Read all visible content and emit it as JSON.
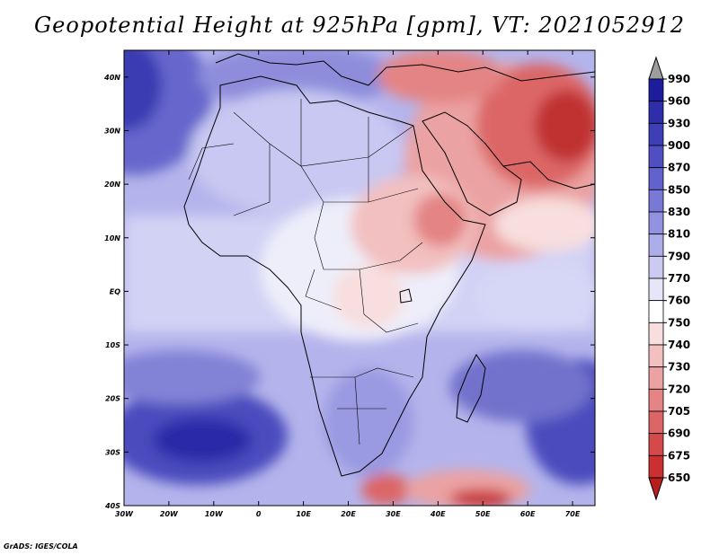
{
  "title": "Geopotential Height at 925hPa [gpm], VT: 2021052912",
  "footer": "GrADS: IGES/COLA",
  "map": {
    "projection": "latlon",
    "lon_range": [
      -30,
      75
    ],
    "lat_range": [
      -40,
      45
    ],
    "x_ticks": [
      {
        "lon": -30,
        "label": "30W"
      },
      {
        "lon": -20,
        "label": "20W"
      },
      {
        "lon": -10,
        "label": "10W"
      },
      {
        "lon": 0,
        "label": "0"
      },
      {
        "lon": 10,
        "label": "10E"
      },
      {
        "lon": 20,
        "label": "20E"
      },
      {
        "lon": 30,
        "label": "30E"
      },
      {
        "lon": 40,
        "label": "40E"
      },
      {
        "lon": 50,
        "label": "50E"
      },
      {
        "lon": 60,
        "label": "60E"
      },
      {
        "lon": 70,
        "label": "70E"
      }
    ],
    "y_ticks": [
      {
        "lat": 40,
        "label": "40N"
      },
      {
        "lat": 30,
        "label": "30N"
      },
      {
        "lat": 20,
        "label": "20N"
      },
      {
        "lat": 10,
        "label": "10N"
      },
      {
        "lat": 0,
        "label": "EQ"
      },
      {
        "lat": -10,
        "label": "10S"
      },
      {
        "lat": -20,
        "label": "20S"
      },
      {
        "lat": -30,
        "label": "30S"
      },
      {
        "lat": -40,
        "label": "40S"
      }
    ]
  },
  "colorbar": {
    "levels": [
      {
        "label": "990",
        "color": "#9e9e9e"
      },
      {
        "label": "960",
        "color": "#1c1c9c"
      },
      {
        "label": "930",
        "color": "#2e2eaa"
      },
      {
        "label": "900",
        "color": "#3e3eb6"
      },
      {
        "label": "870",
        "color": "#4f4fc2"
      },
      {
        "label": "850",
        "color": "#6262cc"
      },
      {
        "label": "830",
        "color": "#7878d6"
      },
      {
        "label": "810",
        "color": "#9292e0"
      },
      {
        "label": "790",
        "color": "#adadea"
      },
      {
        "label": "770",
        "color": "#cacaf2"
      },
      {
        "label": "760",
        "color": "#e6e6f8"
      },
      {
        "label": "750",
        "color": "#ffffff"
      },
      {
        "label": "740",
        "color": "#f8dede"
      },
      {
        "label": "730",
        "color": "#f2c0c0"
      },
      {
        "label": "720",
        "color": "#eba2a2"
      },
      {
        "label": "705",
        "color": "#e48484"
      },
      {
        "label": "690",
        "color": "#dc6666"
      },
      {
        "label": "675",
        "color": "#d44a4a"
      },
      {
        "label": "650",
        "color": "#ca3030"
      },
      {
        "label": "",
        "color": "#b81e1e"
      }
    ]
  }
}
